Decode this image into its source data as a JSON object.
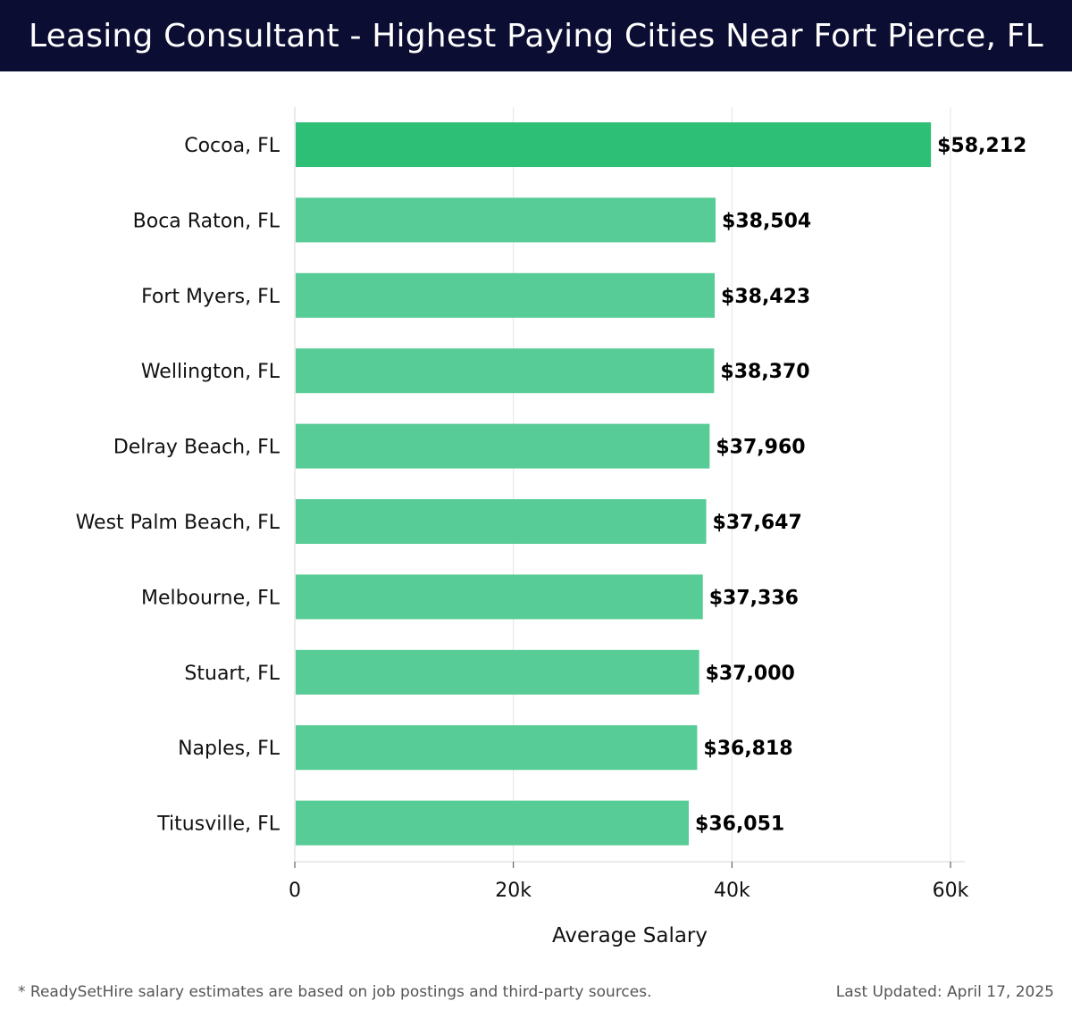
{
  "header": {
    "title": "Leasing Consultant - Highest Paying Cities Near Fort Pierce, FL"
  },
  "chart_data": {
    "type": "bar",
    "orientation": "horizontal",
    "title": "Leasing Consultant - Highest Paying Cities Near Fort Pierce, FL",
    "xlabel": "Average Salary",
    "ylabel": "",
    "xlim": [
      0,
      60000
    ],
    "ticks": [
      0,
      20000,
      40000,
      60000
    ],
    "tick_labels": [
      "0",
      "20k",
      "40k",
      "60k"
    ],
    "grid": true,
    "categories": [
      "Cocoa, FL",
      "Boca Raton, FL",
      "Fort Myers, FL",
      "Wellington, FL",
      "Delray Beach, FL",
      "West Palm Beach, FL",
      "Melbourne, FL",
      "Stuart, FL",
      "Naples, FL",
      "Titusville, FL"
    ],
    "values": [
      58212,
      38504,
      38423,
      38370,
      37960,
      37647,
      37336,
      37000,
      36818,
      36051
    ],
    "value_labels": [
      "$58,212",
      "$38,504",
      "$38,423",
      "$38,370",
      "$37,960",
      "$37,647",
      "$37,336",
      "$37,000",
      "$36,818",
      "$36,051"
    ],
    "colors": {
      "highlight": "#2ebf77",
      "default": "#58cc96"
    }
  },
  "footer": {
    "note": "* ReadySetHire salary estimates are based on job postings and third-party sources.",
    "updated": "Last Updated: April 17, 2025"
  }
}
